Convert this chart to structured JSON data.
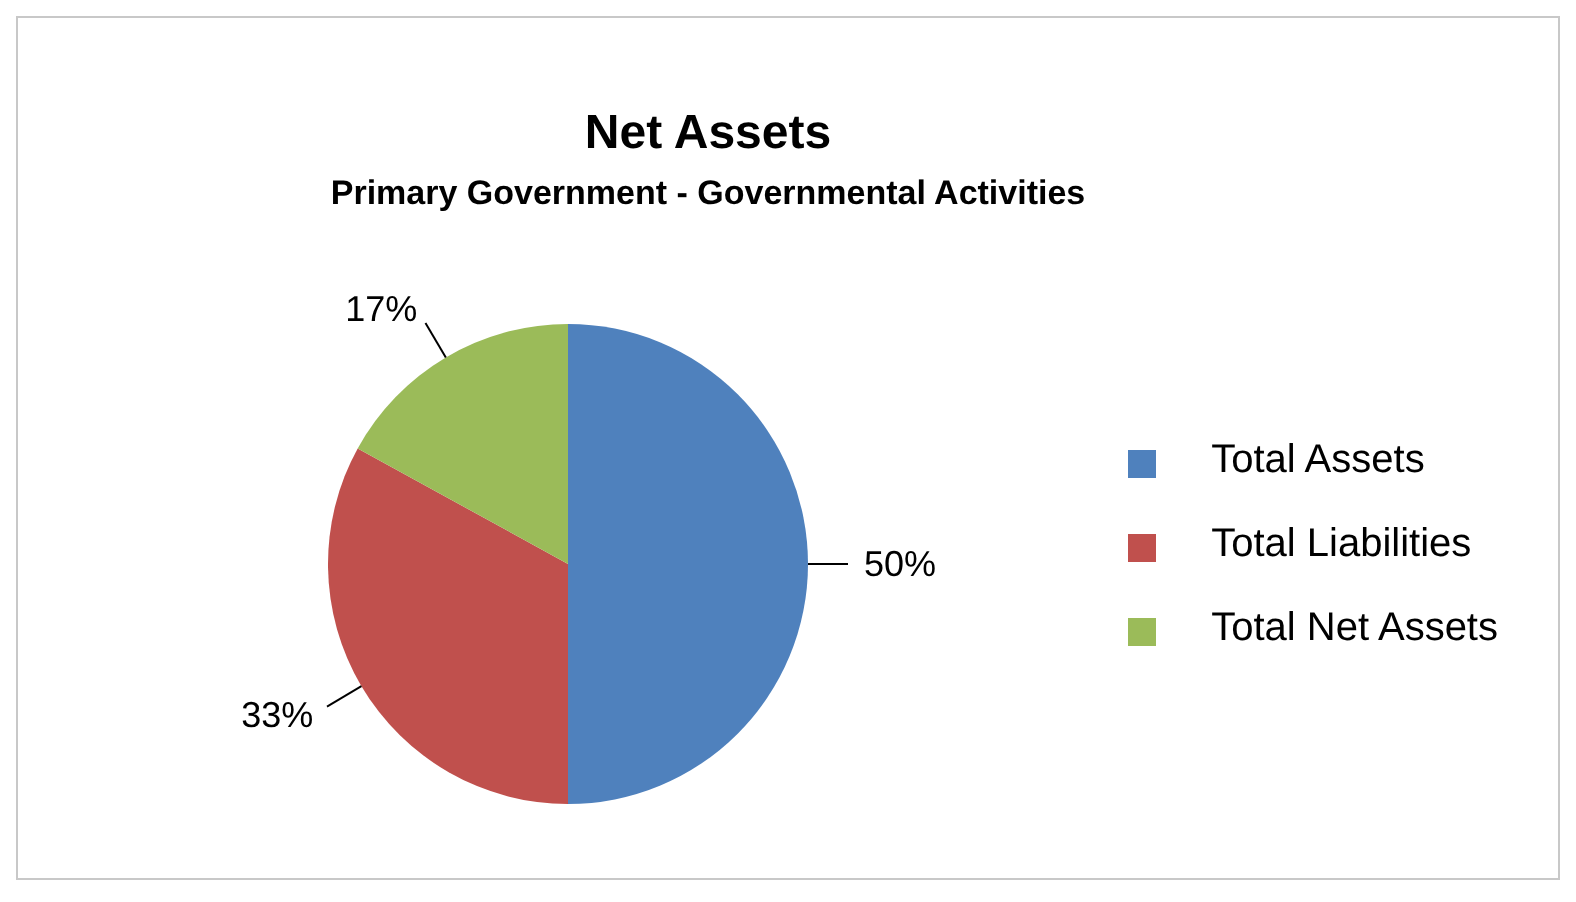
{
  "chart_data": {
    "type": "pie",
    "title": "Net Assets",
    "subtitle": "Primary Government - Governmental Activities",
    "categories": [
      "Total Assets",
      "Total Liabilities",
      "Total Net Assets"
    ],
    "values": [
      50,
      33,
      17
    ],
    "colors": [
      "#4f81bd",
      "#c0504d",
      "#9bbb59"
    ],
    "value_labels": [
      "50%",
      "33%",
      "17%"
    ],
    "legend": "right"
  }
}
